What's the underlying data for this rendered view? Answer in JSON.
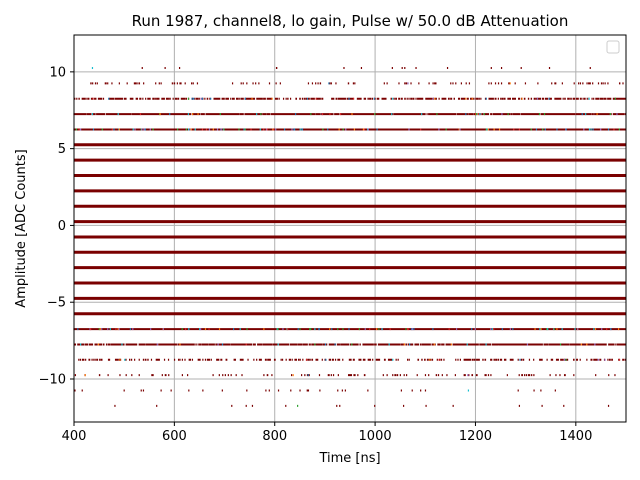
{
  "chart_data": {
    "type": "scatter",
    "title": "Run 1987, channel8, lo gain, Pulse w/ 50.0 dB Attenuation",
    "xlabel": "Time [ns]",
    "ylabel": "Amplitude [ADC Counts]",
    "xlim": [
      400,
      1500
    ],
    "ylim": [
      -12.8,
      12.4
    ],
    "xticks": [
      400,
      600,
      800,
      1000,
      1200,
      1400
    ],
    "yticks": [
      -10,
      -5,
      0,
      5,
      10
    ],
    "xtick_labels": [
      "400",
      "600",
      "800",
      "1000",
      "1200",
      "1400"
    ],
    "ytick_labels": [
      "−10",
      "−5",
      "0",
      "5",
      "10"
    ],
    "grid": true,
    "legend": "top-right (empty)",
    "sample_step_ns": 0.4,
    "levels": [
      {
        "y": -11.75,
        "density": 0.005
      },
      {
        "y": -10.75,
        "density": 0.01
      },
      {
        "y": -9.75,
        "density": 0.03
      },
      {
        "y": -8.75,
        "density": 0.1
      },
      {
        "y": -7.75,
        "density": 0.35
      },
      {
        "y": -6.75,
        "density": 0.85
      },
      {
        "y": -5.75,
        "density": 1.0
      },
      {
        "y": -4.75,
        "density": 1.0
      },
      {
        "y": -3.75,
        "density": 1.0
      },
      {
        "y": -2.75,
        "density": 1.0
      },
      {
        "y": -1.75,
        "density": 1.0
      },
      {
        "y": -0.75,
        "density": 1.0
      },
      {
        "y": 0.25,
        "density": 1.0
      },
      {
        "y": 1.25,
        "density": 1.0
      },
      {
        "y": 2.25,
        "density": 1.0
      },
      {
        "y": 3.25,
        "density": 1.0
      },
      {
        "y": 4.25,
        "density": 1.0
      },
      {
        "y": 5.25,
        "density": 1.0
      },
      {
        "y": 6.25,
        "density": 0.95
      },
      {
        "y": 7.25,
        "density": 0.45
      },
      {
        "y": 8.25,
        "density": 0.18
      },
      {
        "y": 9.25,
        "density": 0.04
      },
      {
        "y": 10.25,
        "density": 0.008
      }
    ],
    "colors": {
      "main": "#7a0000",
      "accents": [
        "#1f77b4",
        "#17becf",
        "#ff7f0e",
        "#2ca02c",
        "#9467bd",
        "#d62728"
      ],
      "grid": "#b0b0b0",
      "axes": "#000000"
    }
  }
}
